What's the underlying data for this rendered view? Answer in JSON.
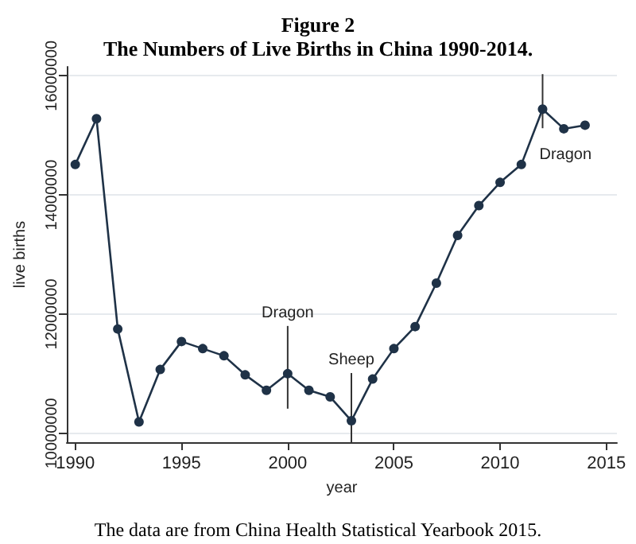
{
  "chart_data": {
    "type": "line",
    "title": "Figure 2",
    "subtitle": "The Numbers of Live Births in China 1990-2014.",
    "xlabel": "year",
    "ylabel": "live births",
    "x": [
      1990,
      1991,
      1992,
      1993,
      1994,
      1995,
      1996,
      1997,
      1998,
      1999,
      2000,
      2001,
      2002,
      2003,
      2004,
      2005,
      2006,
      2007,
      2008,
      2009,
      2010,
      2011,
      2012,
      2013,
      2014
    ],
    "series": [
      {
        "color": "#1f3247",
        "values": [
          14510000,
          15280000,
          11750000,
          10190000,
          11070000,
          11540000,
          11420000,
          11300000,
          10980000,
          10720000,
          11000000,
          10720000,
          10610000,
          10210000,
          10910000,
          11420000,
          11790000,
          12520000,
          13320000,
          13820000,
          14210000,
          14510000,
          15440000,
          15110000,
          15170000
        ]
      }
    ],
    "xlim": [
      1989.6,
      2015.5
    ],
    "xticks": [
      1990,
      1995,
      2000,
      2005,
      2010,
      2015
    ],
    "ylim": [
      9850000,
      16150000
    ],
    "yticks": [
      10000000,
      12000000,
      14000000,
      16000000
    ],
    "grid": "y",
    "marker": "circle",
    "line_style": "solid",
    "ref_lines": [
      {
        "axis": "x",
        "value": 2000,
        "label": "Dragon"
      },
      {
        "axis": "x",
        "value": 2003,
        "label": "Sheep"
      },
      {
        "axis": "x",
        "value": 2012,
        "label": "Dragon"
      }
    ],
    "annotations": [
      "The data are from China Health Statistical Yearbook 2015."
    ]
  }
}
